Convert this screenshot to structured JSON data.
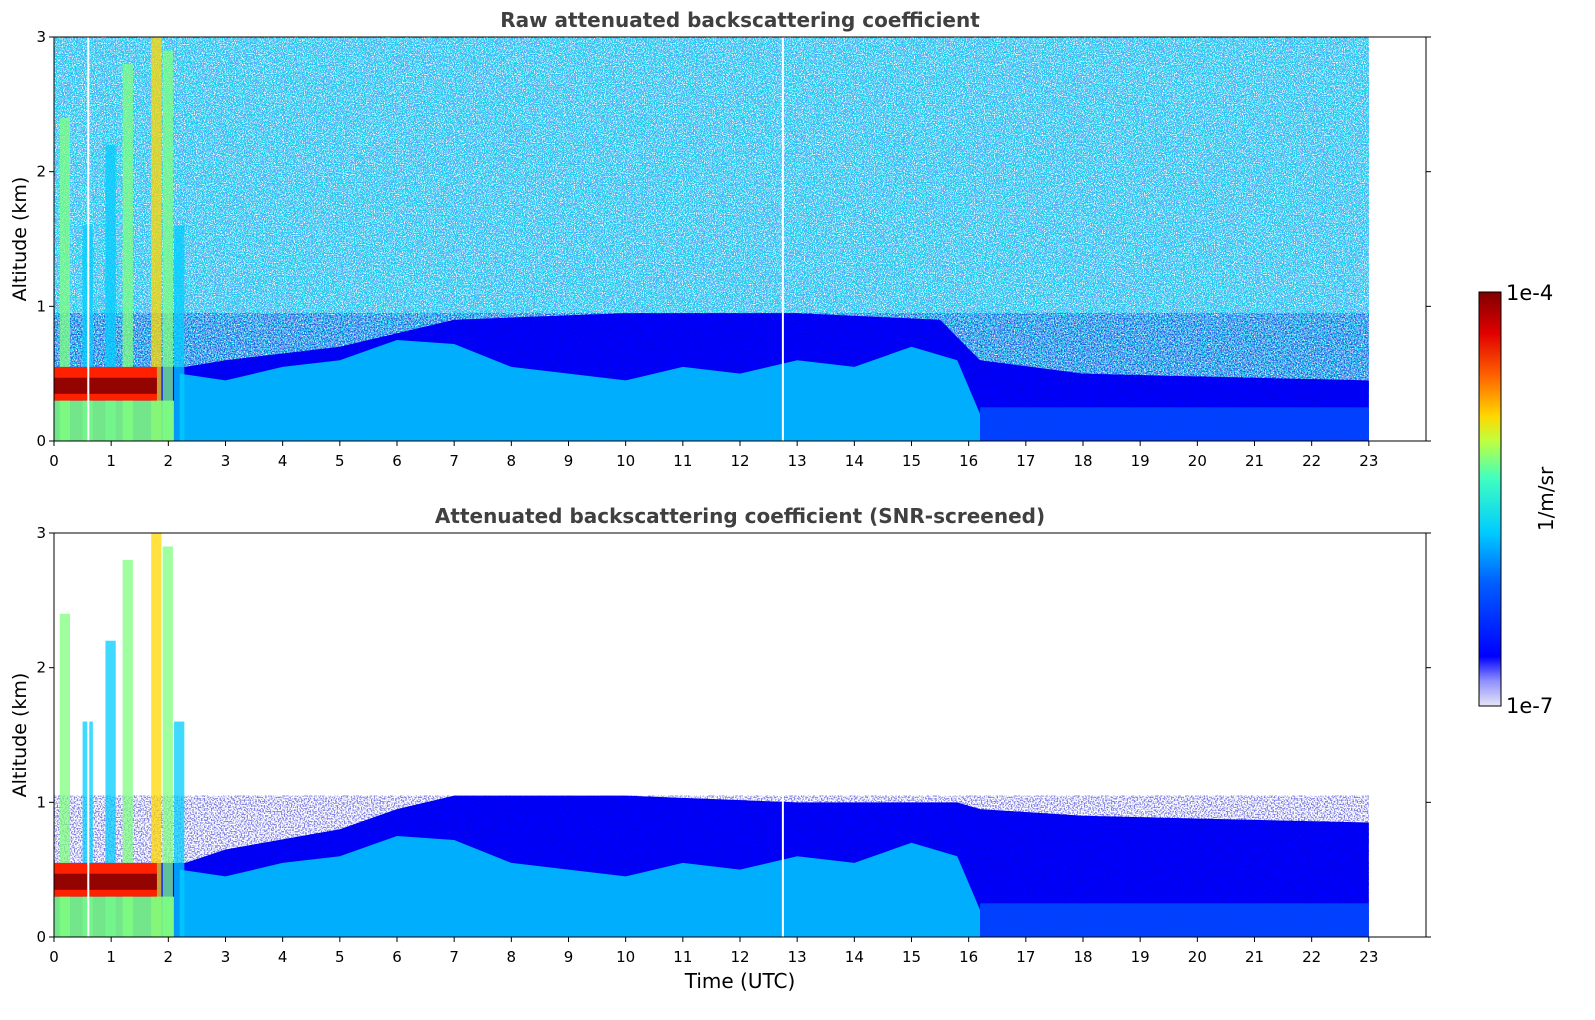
{
  "chart_data": [
    {
      "type": "heatmap",
      "title": "Raw attenuated backscattering coefficient",
      "ylabel": "Altitude (km)",
      "xlabel": "",
      "xlim": [
        0,
        24
      ],
      "ylim": [
        0,
        3
      ],
      "x_ticks": [
        0,
        1,
        2,
        3,
        4,
        5,
        6,
        7,
        8,
        9,
        10,
        11,
        12,
        13,
        14,
        15,
        16,
        17,
        18,
        19,
        20,
        21,
        22,
        23
      ],
      "y_ticks": [
        0,
        1,
        2,
        3
      ],
      "data_end_time": 23,
      "features": {
        "low_cloud_layer": {
          "time_range": [
            0,
            1.8
          ],
          "altitude_range": [
            0.3,
            0.55
          ],
          "level": "1e-4"
        },
        "boundary_layer_top_km": [
          {
            "t": 0,
            "z": 0.55
          },
          {
            "t": 2.3,
            "z": 0.55
          },
          {
            "t": 3,
            "z": 0.6
          },
          {
            "t": 5,
            "z": 0.7
          },
          {
            "t": 6,
            "z": 0.8
          },
          {
            "t": 7,
            "z": 0.9
          },
          {
            "t": 10,
            "z": 0.95
          },
          {
            "t": 13,
            "z": 0.95
          },
          {
            "t": 15.5,
            "z": 0.9
          },
          {
            "t": 16.2,
            "z": 0.6
          },
          {
            "t": 18,
            "z": 0.5
          },
          {
            "t": 23,
            "z": 0.45
          }
        ],
        "data_gap_time": 12.75,
        "background_noise": true
      }
    },
    {
      "type": "heatmap",
      "title": "Attenuated backscattering coefficient (SNR-screened)",
      "ylabel": "Altitude (km)",
      "xlabel": "Time (UTC)",
      "xlim": [
        0,
        24
      ],
      "ylim": [
        0,
        3
      ],
      "x_ticks": [
        0,
        1,
        2,
        3,
        4,
        5,
        6,
        7,
        8,
        9,
        10,
        11,
        12,
        13,
        14,
        15,
        16,
        17,
        18,
        19,
        20,
        21,
        22,
        23
      ],
      "y_ticks": [
        0,
        1,
        2,
        3
      ],
      "data_end_time": 23,
      "features": {
        "low_cloud_layer": {
          "time_range": [
            0,
            1.8
          ],
          "altitude_range": [
            0.3,
            0.55
          ],
          "level": "1e-4"
        },
        "boundary_layer_top_km": [
          {
            "t": 0,
            "z": 0.55
          },
          {
            "t": 2.3,
            "z": 0.55
          },
          {
            "t": 3,
            "z": 0.65
          },
          {
            "t": 5,
            "z": 0.8
          },
          {
            "t": 6,
            "z": 0.95
          },
          {
            "t": 7,
            "z": 1.05
          },
          {
            "t": 10,
            "z": 1.05
          },
          {
            "t": 13,
            "z": 1.0
          },
          {
            "t": 15.8,
            "z": 1.0
          },
          {
            "t": 16.2,
            "z": 0.95
          },
          {
            "t": 18,
            "z": 0.9
          },
          {
            "t": 23,
            "z": 0.85
          }
        ],
        "data_gap_time": 12.75,
        "background_noise": false
      }
    }
  ],
  "colorbar": {
    "min_label": "1e-7",
    "max_label": "1e-4",
    "label": "1/m/sr",
    "colormap": "jet",
    "colors": {
      "low": "#e6e6f5",
      "blue": "#0000ff",
      "cyan": "#00ccff",
      "green": "#7fff7f",
      "yellow": "#ffd700",
      "red": "#ff2000",
      "darkred": "#800000"
    }
  }
}
